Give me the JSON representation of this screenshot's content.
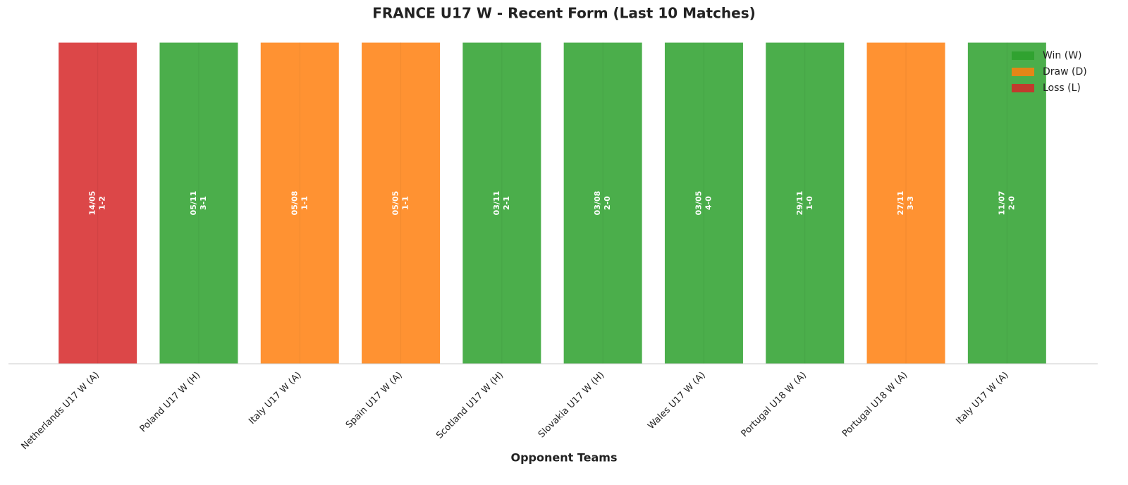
{
  "chart_data": {
    "type": "bar",
    "title": "FRANCE U17 W - Recent Form (Last 10 Matches)",
    "x_label": "Opponent Teams",
    "categories": [
      "Netherlands U17 W (A)",
      "Poland U17 W (H)",
      "Italy U17 W (A)",
      "Spain U17 W (A)",
      "Scotland U17 W (H)",
      "Slovakia U17 W (H)",
      "Wales U17 W (A)",
      "Portugal U18 W (A)",
      "Portugal U18 W (A)",
      "Italy U17 W (A)"
    ],
    "values": [
      1,
      1,
      1,
      1,
      1,
      1,
      1,
      1,
      1,
      1
    ],
    "ylim": [
      0,
      1
    ],
    "dates": [
      "14/05",
      "05/11",
      "05/08",
      "05/05",
      "03/11",
      "03/08",
      "03/05",
      "29/11",
      "27/11",
      "11/07"
    ],
    "scores": [
      "1-2",
      "3-1",
      "1-1",
      "1-1",
      "2-1",
      "2-0",
      "4-0",
      "1-0",
      "3-3",
      "2-0"
    ],
    "colors": [
      "#d62728",
      "#2ca02c",
      "#ff7f0e",
      "#ff7f0e",
      "#2ca02c",
      "#2ca02c",
      "#2ca02c",
      "#2ca02c",
      "#ff7f0e",
      "#2ca02c"
    ],
    "legend": [
      {
        "name": "Win (W)",
        "color": "#2ca02c"
      },
      {
        "name": "Draw (D)",
        "color": "#ff7f0e"
      },
      {
        "name": "Loss (L)",
        "color": "#d62728"
      }
    ],
    "legend_position": "upper right"
  }
}
